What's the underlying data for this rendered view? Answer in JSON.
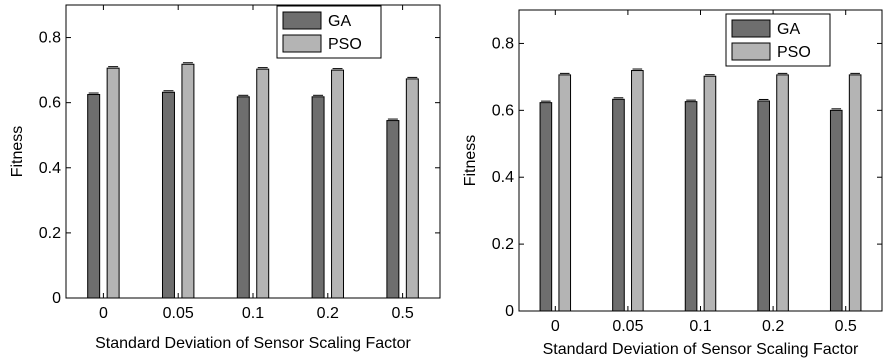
{
  "chart_data": [
    {
      "type": "bar",
      "categories": [
        "0",
        "0.05",
        "0.1",
        "0.2",
        "0.5"
      ],
      "series": [
        {
          "name": "GA",
          "values": [
            0.625,
            0.632,
            0.618,
            0.618,
            0.545
          ]
        },
        {
          "name": "PSO",
          "values": [
            0.706,
            0.718,
            0.703,
            0.7,
            0.673
          ]
        }
      ],
      "xlabel": "Standard Deviation of Sensor Scaling Factor",
      "ylabel": "Fitness",
      "ylim": [
        0,
        0.9
      ],
      "yticks": [
        0,
        0.2,
        0.4,
        0.6,
        0.8
      ],
      "legend": "top-right",
      "colors": {
        "GA": "#6e6e6e",
        "PSO": "#b4b4b4"
      },
      "error_bars": true
    },
    {
      "type": "bar",
      "categories": [
        "0",
        "0.05",
        "0.1",
        "0.2",
        "0.5"
      ],
      "series": [
        {
          "name": "GA",
          "values": [
            0.623,
            0.633,
            0.626,
            0.628,
            0.6
          ]
        },
        {
          "name": "PSO",
          "values": [
            0.706,
            0.719,
            0.702,
            0.706,
            0.706
          ]
        }
      ],
      "xlabel": "Standard Deviation of Sensor Scaling Factor",
      "ylabel": "Fitness",
      "ylim": [
        0,
        0.9
      ],
      "yticks": [
        0,
        0.2,
        0.4,
        0.6,
        0.8
      ],
      "legend": "top-right",
      "colors": {
        "GA": "#6e6e6e",
        "PSO": "#b4b4b4"
      },
      "error_bars": true
    }
  ]
}
